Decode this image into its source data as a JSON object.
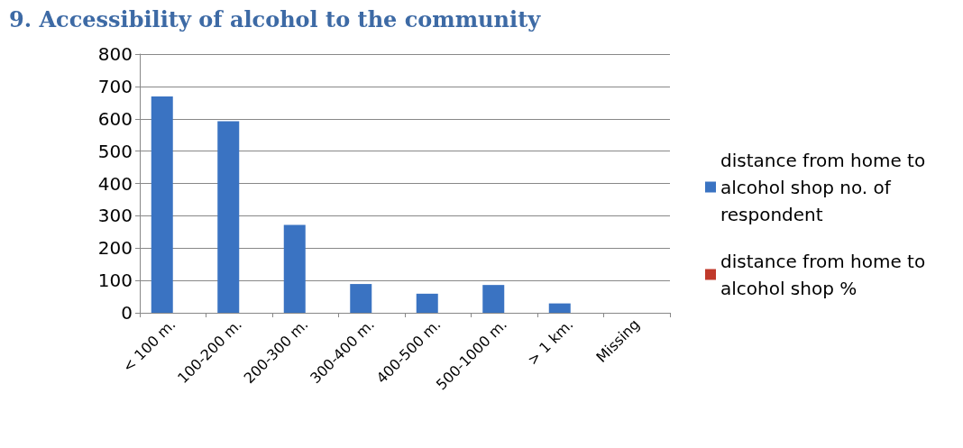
{
  "chart_data": {
    "type": "bar",
    "title": "9. Accessibility of alcohol to the community",
    "categories": [
      "< 100 m.",
      "100-200 m.",
      "200-300 m.",
      "300-400 m.",
      "400-500 m.",
      "500-1000 m.",
      "> 1 km.",
      "Missing"
    ],
    "series": [
      {
        "name": "distance from home to alcohol shop no. of respondent",
        "color": "#3a73c2",
        "values": [
          669,
          592,
          272,
          89,
          59,
          86,
          29,
          null
        ]
      },
      {
        "name": "distance from home to alcohol shop %",
        "color": "#c0392b",
        "values": [
          null,
          null,
          null,
          null,
          null,
          null,
          null,
          null
        ]
      }
    ],
    "ylim": [
      0,
      800
    ],
    "yticks": [
      0,
      100,
      200,
      300,
      400,
      500,
      600,
      700,
      800
    ],
    "grid": "y",
    "legend": "right"
  }
}
